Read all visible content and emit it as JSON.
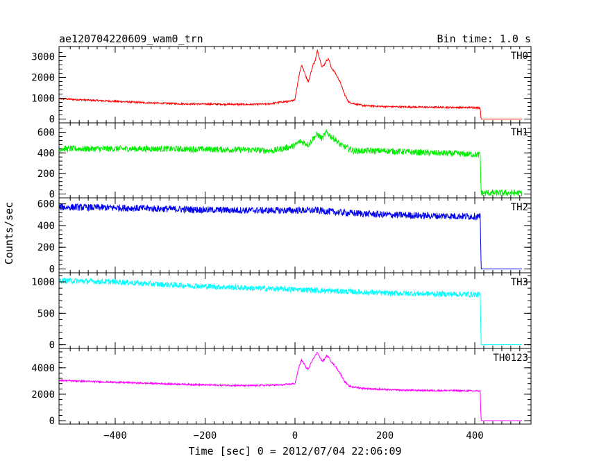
{
  "title_left": "ae120704220609_wam0_trn",
  "title_right": "Bin time: 1.0 s",
  "chart_data": {
    "type": "line",
    "xlabel": "Time [sec] 0 = 2012/07/04 22:06:09",
    "ylabel": "Counts/sec",
    "xlim": [
      -525,
      525
    ],
    "x_ticks": [
      -400,
      -200,
      0,
      200,
      400
    ],
    "grid": false,
    "panels": [
      {
        "name": "TH0",
        "color": "#ff0000",
        "ylim": [
          -50,
          3350
        ],
        "y_ticks": [
          0,
          1000,
          2000,
          3000
        ],
        "points": [
          [
            -530,
            990
          ],
          [
            -500,
            950
          ],
          [
            -450,
            900
          ],
          [
            -400,
            850
          ],
          [
            -350,
            800
          ],
          [
            -300,
            760
          ],
          [
            -250,
            730
          ],
          [
            -200,
            720
          ],
          [
            -150,
            710
          ],
          [
            -100,
            700
          ],
          [
            -60,
            720
          ],
          [
            -30,
            820
          ],
          [
            -10,
            850
          ],
          [
            0,
            950
          ],
          [
            5,
            1600
          ],
          [
            10,
            2200
          ],
          [
            15,
            2600
          ],
          [
            20,
            2300
          ],
          [
            25,
            2000
          ],
          [
            30,
            1800
          ],
          [
            35,
            2200
          ],
          [
            40,
            2600
          ],
          [
            45,
            2800
          ],
          [
            50,
            3300
          ],
          [
            55,
            2900
          ],
          [
            60,
            2500
          ],
          [
            65,
            2600
          ],
          [
            70,
            2800
          ],
          [
            75,
            2900
          ],
          [
            80,
            2500
          ],
          [
            90,
            2200
          ],
          [
            100,
            1800
          ],
          [
            110,
            1200
          ],
          [
            120,
            800
          ],
          [
            150,
            650
          ],
          [
            200,
            600
          ],
          [
            250,
            580
          ],
          [
            300,
            570
          ],
          [
            350,
            560
          ],
          [
            400,
            550
          ],
          [
            412,
            540
          ],
          [
            414,
            0
          ],
          [
            505,
            0
          ]
        ]
      },
      {
        "name": "TH1",
        "color": "#00ee00",
        "ylim": [
          -10,
          665
        ],
        "y_ticks": [
          0,
          200,
          400,
          600
        ],
        "points": [
          [
            -530,
            440
          ],
          [
            -400,
            440
          ],
          [
            -300,
            440
          ],
          [
            -200,
            435
          ],
          [
            -100,
            430
          ],
          [
            -50,
            420
          ],
          [
            -20,
            450
          ],
          [
            0,
            470
          ],
          [
            10,
            510
          ],
          [
            20,
            500
          ],
          [
            30,
            480
          ],
          [
            40,
            540
          ],
          [
            50,
            580
          ],
          [
            60,
            540
          ],
          [
            70,
            600
          ],
          [
            80,
            560
          ],
          [
            90,
            530
          ],
          [
            100,
            480
          ],
          [
            130,
            420
          ],
          [
            200,
            420
          ],
          [
            300,
            400
          ],
          [
            400,
            385
          ],
          [
            412,
            380
          ],
          [
            414,
            10
          ],
          [
            505,
            10
          ]
        ]
      },
      {
        "name": "TH2",
        "color": "#0000ee",
        "ylim": [
          -10,
          630
        ],
        "y_ticks": [
          0,
          200,
          400,
          600
        ],
        "points": [
          [
            -530,
            570
          ],
          [
            -400,
            565
          ],
          [
            -300,
            555
          ],
          [
            -200,
            545
          ],
          [
            -100,
            540
          ],
          [
            0,
            540
          ],
          [
            50,
            540
          ],
          [
            100,
            520
          ],
          [
            200,
            500
          ],
          [
            300,
            490
          ],
          [
            400,
            485
          ],
          [
            412,
            480
          ],
          [
            414,
            0
          ],
          [
            505,
            0
          ]
        ]
      },
      {
        "name": "TH3",
        "color": "#00ffff",
        "ylim": [
          -15,
          1100
        ],
        "y_ticks": [
          0,
          500,
          1000
        ],
        "points": [
          [
            -530,
            1020
          ],
          [
            -400,
            1000
          ],
          [
            -300,
            960
          ],
          [
            -200,
            930
          ],
          [
            -100,
            900
          ],
          [
            0,
            880
          ],
          [
            100,
            850
          ],
          [
            200,
            820
          ],
          [
            300,
            810
          ],
          [
            400,
            800
          ],
          [
            412,
            795
          ],
          [
            414,
            0
          ],
          [
            505,
            0
          ]
        ]
      },
      {
        "name": "TH0123",
        "color": "#ff00ff",
        "ylim": [
          -50,
          5250
        ],
        "y_ticks": [
          0,
          2000,
          4000
        ],
        "points": [
          [
            -530,
            3050
          ],
          [
            -400,
            2900
          ],
          [
            -300,
            2800
          ],
          [
            -200,
            2700
          ],
          [
            -100,
            2650
          ],
          [
            -30,
            2700
          ],
          [
            0,
            2800
          ],
          [
            5,
            3500
          ],
          [
            10,
            4200
          ],
          [
            15,
            4600
          ],
          [
            20,
            4300
          ],
          [
            25,
            4000
          ],
          [
            30,
            3900
          ],
          [
            35,
            4300
          ],
          [
            40,
            4700
          ],
          [
            45,
            4900
          ],
          [
            50,
            5200
          ],
          [
            55,
            4800
          ],
          [
            60,
            4500
          ],
          [
            65,
            4600
          ],
          [
            70,
            4900
          ],
          [
            75,
            4800
          ],
          [
            80,
            4500
          ],
          [
            90,
            4100
          ],
          [
            100,
            3600
          ],
          [
            110,
            3000
          ],
          [
            120,
            2600
          ],
          [
            150,
            2450
          ],
          [
            200,
            2350
          ],
          [
            250,
            2300
          ],
          [
            300,
            2280
          ],
          [
            350,
            2270
          ],
          [
            400,
            2250
          ],
          [
            412,
            2240
          ],
          [
            414,
            0
          ],
          [
            505,
            0
          ]
        ]
      }
    ]
  }
}
